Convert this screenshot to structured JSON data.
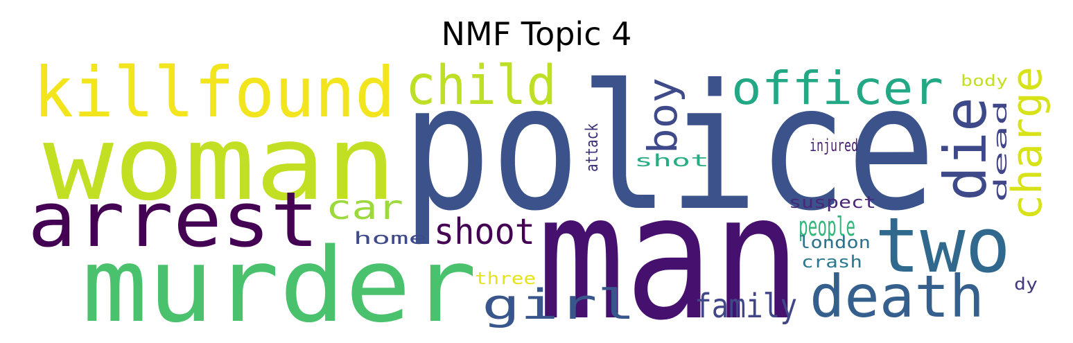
{
  "title": "NMF Topic 4",
  "colors": {
    "background": "#ffffff",
    "title": "#000000"
  },
  "words": [
    {
      "text": "police",
      "color": "#3b528b"
    },
    {
      "text": "man",
      "color": "#46106e"
    },
    {
      "text": "woman",
      "color": "#c2df23"
    },
    {
      "text": "murder",
      "color": "#4ac16d"
    },
    {
      "text": "arrest",
      "color": "#440154"
    },
    {
      "text": "killfound",
      "color": "#f2e51d"
    },
    {
      "text": "two",
      "color": "#31688e"
    },
    {
      "text": "death",
      "color": "#355f8d"
    },
    {
      "text": "child",
      "color": "#bddf26"
    },
    {
      "text": "officer",
      "color": "#22a884"
    },
    {
      "text": "die",
      "color": "#3e4989"
    },
    {
      "text": "charge",
      "color": "#d8e219"
    },
    {
      "text": "boy",
      "color": "#3e4a89"
    },
    {
      "text": "attack",
      "color": "#3a2f77"
    },
    {
      "text": "dead",
      "color": "#404688"
    },
    {
      "text": "girl",
      "color": "#39568c"
    },
    {
      "text": "shoot",
      "color": "#440154"
    },
    {
      "text": "car",
      "color": "#9bd93c"
    },
    {
      "text": "family",
      "color": "#404688"
    },
    {
      "text": "people",
      "color": "#32b67a"
    },
    {
      "text": "home",
      "color": "#3e4a89"
    },
    {
      "text": "shot",
      "color": "#27ad81"
    },
    {
      "text": "injured",
      "color": "#482374"
    },
    {
      "text": "body",
      "color": "#c5e021"
    },
    {
      "text": "suspect",
      "color": "#482878"
    },
    {
      "text": "london",
      "color": "#2c728e"
    },
    {
      "text": "crash",
      "color": "#2a788e"
    },
    {
      "text": "three",
      "color": "#e5e419"
    },
    {
      "text": "dy",
      "color": "#443a83"
    }
  ]
}
